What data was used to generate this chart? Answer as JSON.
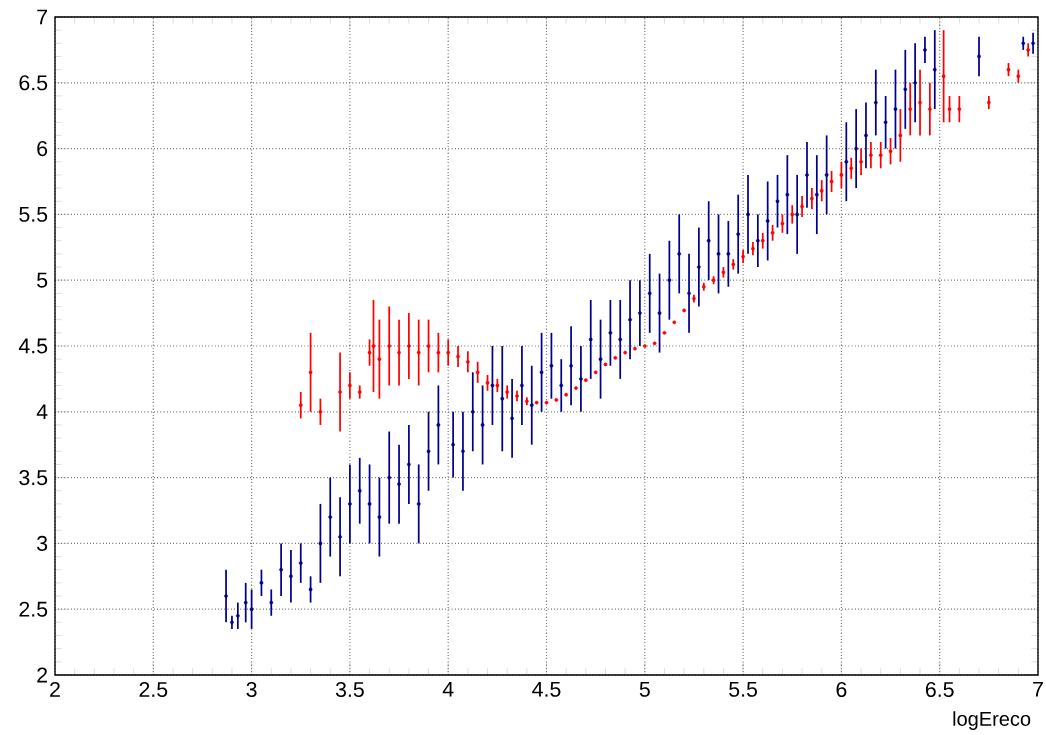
{
  "chart_data": {
    "type": "scatter",
    "xlabel": "logEreco",
    "xlim": [
      2,
      7
    ],
    "ylim": [
      2,
      7
    ],
    "xticks": [
      2,
      2.5,
      3,
      3.5,
      4,
      4.5,
      5,
      5.5,
      6,
      6.5,
      7
    ],
    "yticks": [
      2,
      2.5,
      3,
      3.5,
      4,
      4.5,
      5,
      5.5,
      6,
      6.5,
      7
    ],
    "grid": true,
    "marker": "circle",
    "series": [
      {
        "color": "#00008b",
        "x": [
          2.87,
          2.9,
          2.93,
          2.97,
          3.0,
          3.05,
          3.1,
          3.15,
          3.2,
          3.25,
          3.3,
          3.35,
          3.4,
          3.45,
          3.5,
          3.55,
          3.6,
          3.65,
          3.7,
          3.75,
          3.8,
          3.85,
          3.9,
          3.95,
          4.025,
          4.075,
          4.125,
          4.175,
          4.225,
          4.275,
          4.325,
          4.375,
          4.425,
          4.475,
          4.525,
          4.575,
          4.625,
          4.675,
          4.725,
          4.775,
          4.825,
          4.875,
          4.925,
          4.975,
          5.025,
          5.075,
          5.125,
          5.175,
          5.225,
          5.275,
          5.325,
          5.375,
          5.425,
          5.475,
          5.525,
          5.575,
          5.625,
          5.675,
          5.725,
          5.775,
          5.825,
          5.875,
          5.925,
          6.025,
          6.075,
          6.125,
          6.175,
          6.225,
          6.275,
          6.325,
          6.375,
          6.425,
          6.475,
          6.7,
          6.925,
          6.975
        ],
        "values": [
          2.6,
          2.4,
          2.45,
          2.55,
          2.5,
          2.7,
          2.55,
          2.8,
          2.75,
          2.85,
          2.65,
          3.0,
          3.2,
          3.05,
          3.3,
          3.4,
          3.3,
          3.2,
          3.5,
          3.45,
          3.6,
          3.3,
          3.7,
          3.9,
          3.75,
          3.7,
          4.0,
          3.9,
          4.2,
          4.1,
          3.95,
          4.2,
          4.05,
          4.3,
          4.35,
          4.2,
          4.35,
          4.25,
          4.55,
          4.4,
          4.6,
          4.55,
          4.7,
          4.75,
          4.9,
          4.75,
          5.0,
          5.2,
          4.9,
          5.1,
          5.3,
          5.2,
          5.2,
          5.35,
          5.5,
          5.3,
          5.45,
          5.6,
          5.65,
          5.5,
          5.8,
          5.65,
          5.8,
          5.9,
          6.0,
          6.1,
          6.35,
          6.2,
          6.3,
          6.45,
          6.5,
          6.75,
          6.6,
          6.7,
          6.8,
          6.8
        ],
        "errors": [
          0.2,
          0.05,
          0.1,
          0.15,
          0.15,
          0.1,
          0.1,
          0.2,
          0.2,
          0.15,
          0.1,
          0.3,
          0.3,
          0.3,
          0.3,
          0.25,
          0.3,
          0.3,
          0.35,
          0.3,
          0.3,
          0.3,
          0.3,
          0.3,
          0.25,
          0.3,
          0.3,
          0.3,
          0.3,
          0.4,
          0.3,
          0.3,
          0.3,
          0.3,
          0.25,
          0.2,
          0.3,
          0.25,
          0.3,
          0.3,
          0.25,
          0.3,
          0.3,
          0.25,
          0.3,
          0.3,
          0.3,
          0.3,
          0.3,
          0.3,
          0.3,
          0.3,
          0.25,
          0.3,
          0.3,
          0.2,
          0.3,
          0.2,
          0.3,
          0.3,
          0.25,
          0.3,
          0.3,
          0.3,
          0.3,
          0.25,
          0.25,
          0.2,
          0.3,
          0.3,
          0.3,
          0.1,
          0.3,
          0.15,
          0.05,
          0.08
        ]
      },
      {
        "color": "#ff0000",
        "x": [
          3.25,
          3.3,
          3.35,
          3.45,
          3.5,
          3.55,
          3.6,
          3.62,
          3.65,
          3.7,
          3.75,
          3.8,
          3.85,
          3.9,
          3.95,
          4.0,
          4.05,
          4.1,
          4.15,
          4.2,
          4.25,
          4.3,
          4.35,
          4.4,
          4.45,
          4.5,
          4.55,
          4.6,
          4.65,
          4.7,
          4.75,
          4.8,
          4.85,
          4.9,
          4.95,
          5.0,
          5.05,
          5.1,
          5.15,
          5.2,
          5.25,
          5.3,
          5.35,
          5.4,
          5.45,
          5.5,
          5.55,
          5.6,
          5.65,
          5.7,
          5.75,
          5.8,
          5.85,
          5.9,
          5.95,
          6.0,
          6.05,
          6.1,
          6.15,
          6.2,
          6.25,
          6.3,
          6.35,
          6.4,
          6.45,
          6.52,
          6.55,
          6.6,
          6.75,
          6.85,
          6.9,
          6.95
        ],
        "values": [
          4.05,
          4.3,
          4.0,
          4.15,
          4.2,
          4.15,
          4.45,
          4.5,
          4.4,
          4.5,
          4.45,
          4.5,
          4.45,
          4.5,
          4.45,
          4.45,
          4.42,
          4.38,
          4.3,
          4.22,
          4.2,
          4.15,
          4.12,
          4.08,
          4.07,
          4.07,
          4.09,
          4.13,
          4.18,
          4.24,
          4.3,
          4.36,
          4.41,
          4.45,
          4.48,
          4.5,
          4.52,
          4.6,
          4.68,
          4.77,
          4.86,
          4.95,
          5.0,
          5.06,
          5.12,
          5.18,
          5.24,
          5.3,
          5.36,
          5.43,
          5.5,
          5.56,
          5.62,
          5.68,
          5.75,
          5.8,
          5.85,
          5.9,
          5.95,
          5.95,
          5.98,
          6.1,
          6.3,
          6.35,
          6.3,
          6.55,
          6.3,
          6.3,
          6.35,
          6.6,
          6.55,
          6.75
        ],
        "errors": [
          0.1,
          0.3,
          0.1,
          0.3,
          0.1,
          0.05,
          0.1,
          0.35,
          0.3,
          0.3,
          0.25,
          0.25,
          0.25,
          0.2,
          0.15,
          0.1,
          0.08,
          0.08,
          0.08,
          0.06,
          0.05,
          0.05,
          0.04,
          0.03,
          null,
          null,
          null,
          null,
          null,
          null,
          null,
          null,
          null,
          null,
          null,
          null,
          null,
          null,
          null,
          null,
          0.03,
          0.03,
          0.03,
          0.04,
          0.04,
          0.05,
          0.05,
          0.06,
          0.06,
          0.07,
          0.07,
          0.08,
          0.08,
          0.08,
          0.08,
          0.1,
          0.08,
          0.1,
          0.1,
          0.1,
          0.1,
          0.2,
          0.2,
          0.25,
          0.2,
          0.35,
          0.1,
          0.1,
          0.05,
          0.05,
          0.05,
          0.05
        ]
      }
    ]
  }
}
